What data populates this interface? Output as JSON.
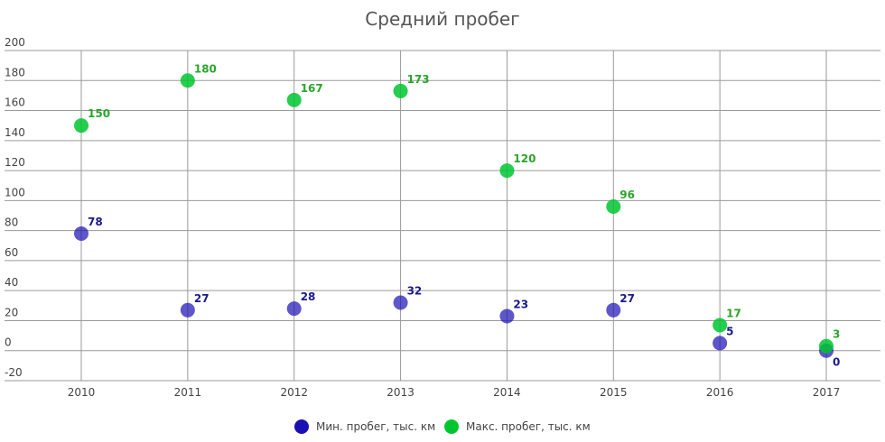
{
  "chart_data": {
    "type": "scatter",
    "title": "Средний пробег",
    "categories": [
      "2010",
      "2011",
      "2012",
      "2013",
      "2014",
      "2015",
      "2016",
      "2017"
    ],
    "series": [
      {
        "name": "Мин. пробег, тыс. км",
        "color": "#1a0fb4",
        "values": [
          78,
          27,
          28,
          32,
          23,
          27,
          5,
          0
        ]
      },
      {
        "name": "Макс. пробег, тыс. км",
        "color": "#00c530",
        "values": [
          150,
          180,
          167,
          173,
          120,
          96,
          17,
          3
        ]
      }
    ],
    "ylim": [
      -20,
      200
    ],
    "yticks": [
      -20,
      0,
      20,
      40,
      60,
      80,
      100,
      120,
      140,
      160,
      180,
      200
    ],
    "grid": true
  }
}
